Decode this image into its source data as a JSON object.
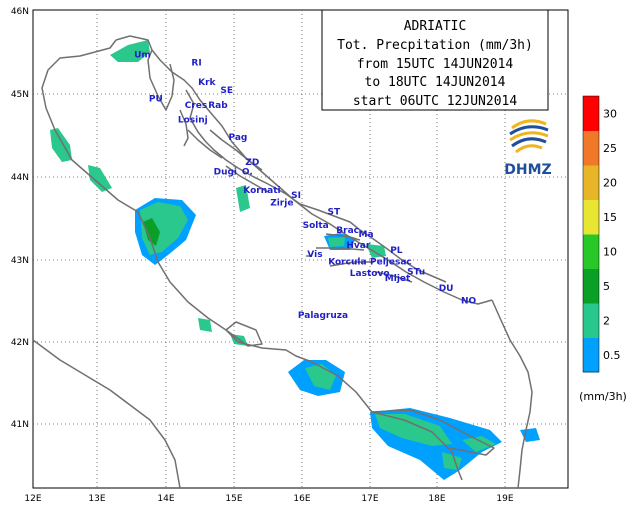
{
  "title_box": {
    "lines": [
      "ADRIATIC",
      "Tot. Precpitation (mm/3h)",
      "from 15UTC 14JUN2014",
      "to 18UTC 14JUN2014",
      "start 06UTC 12JUN2014"
    ]
  },
  "logo": {
    "text": "DHMZ"
  },
  "x_ticks": [
    "12E",
    "13E",
    "14E",
    "15E",
    "16E",
    "17E",
    "18E",
    "19E"
  ],
  "y_ticks": [
    "46N",
    "45N",
    "44N",
    "43N",
    "42N",
    "41N"
  ],
  "places": [
    {
      "name": "Um",
      "lon": 13.5,
      "lat": 45.43
    },
    {
      "name": "RI",
      "lon": 14.35,
      "lat": 45.33
    },
    {
      "name": "Krk",
      "lon": 14.45,
      "lat": 45.1
    },
    {
      "name": "SE",
      "lon": 14.78,
      "lat": 45.0
    },
    {
      "name": "PU",
      "lon": 13.72,
      "lat": 44.9
    },
    {
      "name": "Cres",
      "lon": 14.25,
      "lat": 44.82
    },
    {
      "name": "Rab",
      "lon": 14.6,
      "lat": 44.82
    },
    {
      "name": "Losinj",
      "lon": 14.15,
      "lat": 44.65
    },
    {
      "name": "Pag",
      "lon": 14.9,
      "lat": 44.44
    },
    {
      "name": "ZD",
      "lon": 15.15,
      "lat": 44.14
    },
    {
      "name": "Dugi",
      "lon": 14.68,
      "lat": 44.02
    },
    {
      "name": "O.",
      "lon": 15.1,
      "lat": 44.02
    },
    {
      "name": "Kornati",
      "lon": 15.12,
      "lat": 43.8
    },
    {
      "name": "SI",
      "lon": 15.83,
      "lat": 43.74
    },
    {
      "name": "Zirje",
      "lon": 15.52,
      "lat": 43.65
    },
    {
      "name": "ST",
      "lon": 16.37,
      "lat": 43.54
    },
    {
      "name": "Solta",
      "lon": 16.0,
      "lat": 43.38
    },
    {
      "name": "Brac",
      "lon": 16.5,
      "lat": 43.32
    },
    {
      "name": "Ma",
      "lon": 16.83,
      "lat": 43.27
    },
    {
      "name": "Hvar",
      "lon": 16.65,
      "lat": 43.14
    },
    {
      "name": "PL",
      "lon": 17.3,
      "lat": 43.08
    },
    {
      "name": "Vis",
      "lon": 16.07,
      "lat": 43.03
    },
    {
      "name": "Korcula",
      "lon": 16.38,
      "lat": 42.94
    },
    {
      "name": "Peljesac",
      "lon": 17.0,
      "lat": 42.94
    },
    {
      "name": "STu",
      "lon": 17.55,
      "lat": 42.82
    },
    {
      "name": "Lastovo",
      "lon": 16.7,
      "lat": 42.8
    },
    {
      "name": "Mljet",
      "lon": 17.22,
      "lat": 42.74
    },
    {
      "name": "DU",
      "lon": 18.02,
      "lat": 42.62
    },
    {
      "name": "NO",
      "lon": 18.35,
      "lat": 42.47
    },
    {
      "name": "Palagruza",
      "lon": 15.93,
      "lat": 42.3
    }
  ],
  "legend": {
    "unit": "(mm/3h)",
    "labels": [
      "30",
      "25",
      "20",
      "15",
      "10",
      "5",
      "2",
      "0.5"
    ],
    "colors": [
      "#ff0000",
      "#f07828",
      "#e8b428",
      "#e8e632",
      "#28c828",
      "#0aa028",
      "#28c88c",
      "#00a0ff"
    ]
  },
  "precip_colors": {
    "light": "#00a0ff",
    "medium": "#2ac88c",
    "heavy": "#0aa028"
  }
}
